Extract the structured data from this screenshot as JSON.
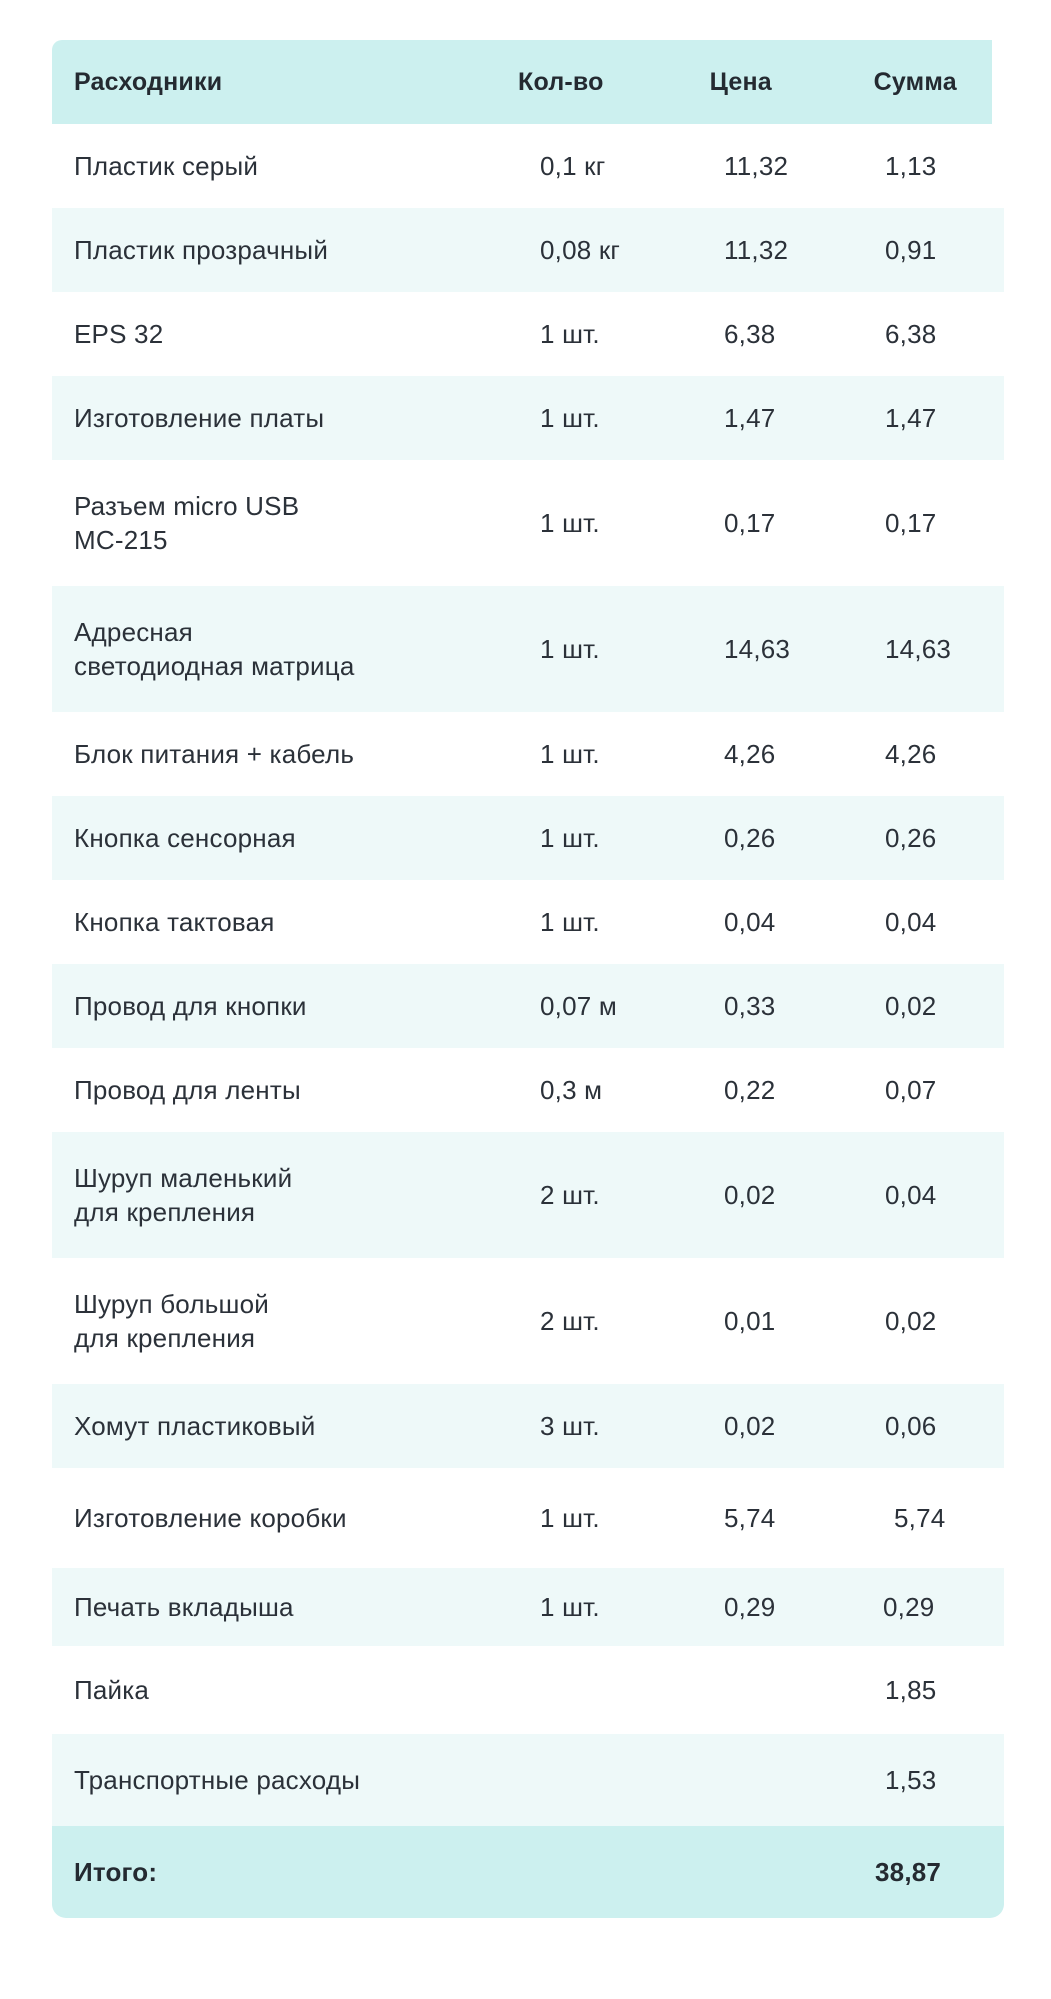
{
  "header": {
    "name": "Расходники",
    "qty": "Кол-во",
    "price": "Цена",
    "sum": "Сумма"
  },
  "rows": [
    {
      "name": "Пластик серый",
      "qty": "0,1 кг",
      "price": "11,32",
      "sum": "1,13"
    },
    {
      "name": "Пластик прозрачный",
      "qty": "0,08 кг",
      "price": "11,32",
      "sum": "0,91"
    },
    {
      "name": "EPS 32",
      "qty": "1 шт.",
      "price": "6,38",
      "sum": "6,38"
    },
    {
      "name": "Изготовление платы",
      "qty": "1 шт.",
      "price": "1,47",
      "sum": "1,47"
    },
    {
      "name": "Разъем micro USB\nMC-215",
      "qty": "1 шт.",
      "price": "0,17",
      "sum": "0,17"
    },
    {
      "name": "Адресная\nсветодиодная матрица",
      "qty": "1 шт.",
      "price": "14,63",
      "sum": "14,63"
    },
    {
      "name": "Блок питания + кабель",
      "qty": "1 шт.",
      "price": "4,26",
      "sum": "4,26"
    },
    {
      "name": "Кнопка сенсорная",
      "qty": "1 шт.",
      "price": "0,26",
      "sum": "0,26"
    },
    {
      "name": "Кнопка тактовая",
      "qty": "1 шт.",
      "price": "0,04",
      "sum": "0,04"
    },
    {
      "name": "Провод для кнопки",
      "qty": "0,07 м",
      "price": "0,33",
      "sum": "0,02"
    },
    {
      "name": "Провод для ленты",
      "qty": "0,3 м",
      "price": "0,22",
      "sum": "0,07"
    },
    {
      "name": "Шуруп маленький\nдля крепления",
      "qty": "2 шт.",
      "price": "0,02",
      "sum": "0,04"
    },
    {
      "name": "Шуруп большой\nдля крепления",
      "qty": "2 шт.",
      "price": "0,01",
      "sum": "0,02"
    },
    {
      "name": "Хомут пластиковый",
      "qty": "3 шт.",
      "price": "0,02",
      "sum": "0,06"
    },
    {
      "name": "Изготовление коробки",
      "qty": "1 шт.",
      "price": "5,74",
      "sum": "5,74"
    },
    {
      "name": "Печать вкладыша",
      "qty": "1 шт.",
      "price": "0,29",
      "sum": "0,29"
    },
    {
      "name": "Пайка",
      "qty": "",
      "price": "",
      "sum": "1,85"
    },
    {
      "name": "Транспортные расходы",
      "qty": "",
      "price": "",
      "sum": "1,53"
    }
  ],
  "total": {
    "label": "Итого:",
    "sum": "38,87"
  },
  "colors": {
    "header_bg": "#ccf0ef",
    "alt_row_bg": "#eef9f9",
    "text": "#2b3139"
  }
}
